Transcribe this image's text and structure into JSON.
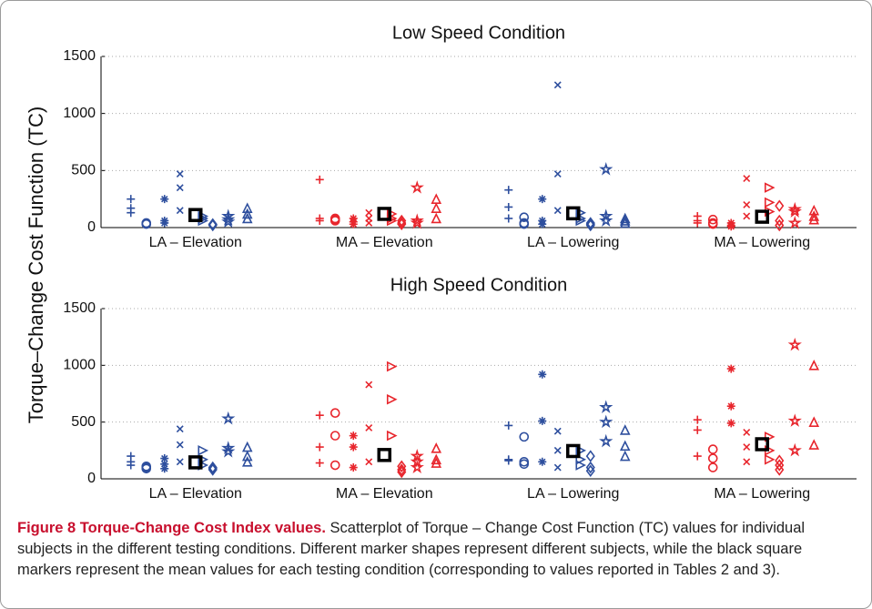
{
  "figure": {
    "ylabel": "Torque–Change Cost Function (TC)",
    "caption_title": "Figure 8 Torque-Change Cost Index values.",
    "caption_text": "Scatterplot of Torque – Change Cost Function (TC) values for individual subjects in the different testing conditions. Different marker shapes represent different subjects, while the black square markers represent the mean values for each testing condition (corresponding to values reported in Tables 2 and 3)."
  },
  "chart_data": [
    {
      "type": "scatter",
      "title": "Low Speed Condition",
      "categories": [
        "LA – Elevation",
        "MA – Elevation",
        "LA – Lowering",
        "MA – Lowering"
      ],
      "category_colors": [
        "#2e4f9e",
        "#e8262d",
        "#2e4f9e",
        "#e8262d"
      ],
      "ylim": [
        0,
        1500
      ],
      "yticks": [
        0,
        500,
        1000,
        1500
      ],
      "grid": true,
      "series": [
        {
          "marker": "plus",
          "values": [
            [
              250,
              170,
              130
            ],
            [
              420,
              80,
              60
            ],
            [
              330,
              180,
              80
            ],
            [
              100,
              60,
              40
            ]
          ]
        },
        {
          "marker": "circle",
          "values": [
            [
              30,
              40,
              35
            ],
            [
              80,
              70,
              60
            ],
            [
              90,
              40,
              30
            ],
            [
              70,
              40,
              30
            ]
          ]
        },
        {
          "marker": "asterisk",
          "values": [
            [
              250,
              60,
              40
            ],
            [
              80,
              50,
              30
            ],
            [
              250,
              60,
              30
            ],
            [
              40,
              20,
              10
            ]
          ]
        },
        {
          "marker": "x",
          "values": [
            [
              470,
              350,
              150
            ],
            [
              130,
              80,
              40
            ],
            [
              1250,
              470,
              150
            ],
            [
              430,
              200,
              100
            ]
          ]
        },
        {
          "marker": "triangle-right",
          "values": [
            [
              100,
              80,
              60
            ],
            [
              120,
              80,
              60
            ],
            [
              130,
              80,
              60
            ],
            [
              350,
              220,
              140
            ]
          ]
        },
        {
          "marker": "diamond",
          "values": [
            [
              20,
              30,
              25
            ],
            [
              60,
              40,
              30
            ],
            [
              40,
              30,
              20
            ],
            [
              190,
              60,
              20
            ]
          ]
        },
        {
          "marker": "star",
          "values": [
            [
              100,
              70,
              50
            ],
            [
              350,
              60,
              40
            ],
            [
              510,
              100,
              60
            ],
            [
              160,
              140,
              40
            ]
          ]
        },
        {
          "marker": "triangle-up",
          "values": [
            [
              170,
              120,
              80
            ],
            [
              250,
              170,
              80
            ],
            [
              80,
              60,
              40
            ],
            [
              150,
              100,
              70
            ]
          ]
        }
      ],
      "means": [
        110,
        120,
        125,
        95
      ],
      "mean_color": "#000000"
    },
    {
      "type": "scatter",
      "title": "High Speed Condition",
      "categories": [
        "LA – Elevation",
        "MA – Elevation",
        "LA – Lowering",
        "MA – Lowering"
      ],
      "category_colors": [
        "#2e4f9e",
        "#e8262d",
        "#2e4f9e",
        "#e8262d"
      ],
      "ylim": [
        0,
        1500
      ],
      "yticks": [
        0,
        500,
        1000,
        1500
      ],
      "grid": true,
      "series": [
        {
          "marker": "plus",
          "values": [
            [
              200,
              150,
              120
            ],
            [
              560,
              280,
              140
            ],
            [
              470,
              170,
              160
            ],
            [
              520,
              430,
              200
            ]
          ]
        },
        {
          "marker": "circle",
          "values": [
            [
              110,
              100,
              90
            ],
            [
              580,
              380,
              120
            ],
            [
              370,
              150,
              130
            ],
            [
              260,
              180,
              100
            ]
          ]
        },
        {
          "marker": "asterisk",
          "values": [
            [
              180,
              130,
              90
            ],
            [
              380,
              280,
              100
            ],
            [
              920,
              510,
              150
            ],
            [
              970,
              640,
              490
            ]
          ]
        },
        {
          "marker": "x",
          "values": [
            [
              440,
              300,
              150
            ],
            [
              830,
              450,
              150
            ],
            [
              420,
              250,
              100
            ],
            [
              410,
              280,
              150
            ]
          ]
        },
        {
          "marker": "triangle-right",
          "values": [
            [
              250,
              170,
              120
            ],
            [
              990,
              700,
              380
            ],
            [
              250,
              170,
              120
            ],
            [
              370,
              250,
              170
            ]
          ]
        },
        {
          "marker": "diamond",
          "values": [
            [
              100,
              90,
              80
            ],
            [
              110,
              80,
              60
            ],
            [
              200,
              100,
              70
            ],
            [
              160,
              120,
              80
            ]
          ]
        },
        {
          "marker": "star",
          "values": [
            [
              530,
              270,
              240
            ],
            [
              200,
              150,
              100
            ],
            [
              630,
              500,
              330
            ],
            [
              1180,
              510,
              250
            ]
          ]
        },
        {
          "marker": "triangle-up",
          "values": [
            [
              280,
              200,
              150
            ],
            [
              270,
              170,
              140
            ],
            [
              430,
              290,
              200
            ],
            [
              1000,
              500,
              300
            ]
          ]
        }
      ],
      "means": [
        145,
        210,
        245,
        305
      ],
      "mean_color": "#000000"
    }
  ]
}
